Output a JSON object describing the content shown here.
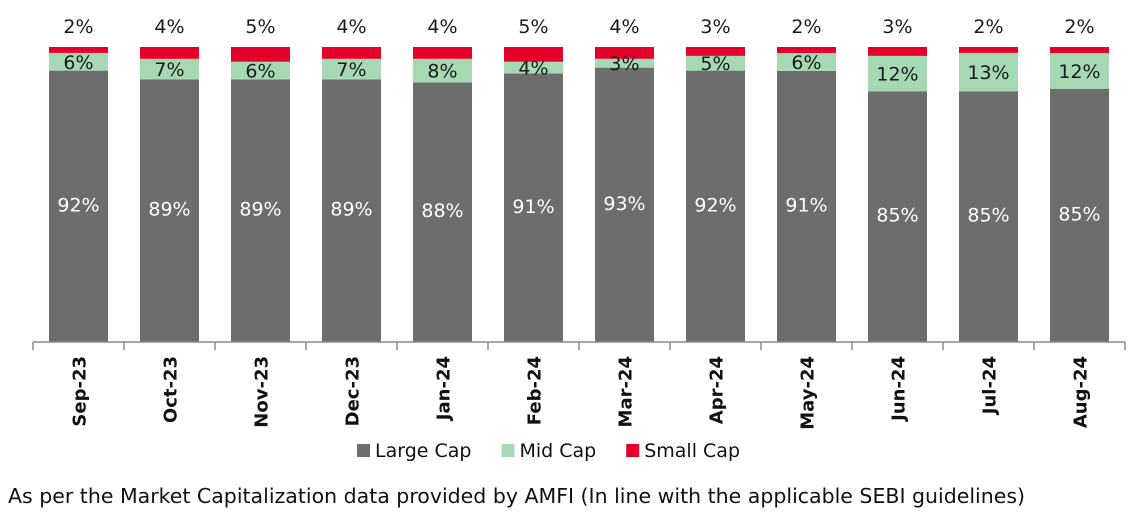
{
  "chart_data": {
    "type": "bar",
    "stacked": true,
    "categories": [
      "Sep-23",
      "Oct-23",
      "Nov-23",
      "Dec-23",
      "Jan-24",
      "Feb-24",
      "Mar-24",
      "Apr-24",
      "May-24",
      "Jun-24",
      "Jul-24",
      "Aug-24"
    ],
    "series": [
      {
        "name": "Large Cap",
        "color": "#6d6d6d",
        "values": [
          92,
          89,
          89,
          89,
          88,
          91,
          93,
          92,
          91,
          85,
          85,
          85
        ],
        "labels": [
          "92%",
          "89%",
          "89%",
          "89%",
          "88%",
          "91%",
          "93%",
          "92%",
          "91%",
          "85%",
          "85%",
          "85%"
        ]
      },
      {
        "name": "Mid Cap",
        "color": "#a6d9b3",
        "values": [
          6,
          7,
          6,
          7,
          8,
          4,
          3,
          5,
          6,
          12,
          13,
          12
        ],
        "labels": [
          "6%",
          "7%",
          "6%",
          "7%",
          "8%",
          "4%",
          "3%",
          "5%",
          "6%",
          "12%",
          "13%",
          "12%"
        ]
      },
      {
        "name": "Small Cap",
        "color": "#e4002b",
        "values": [
          2,
          4,
          5,
          4,
          4,
          5,
          4,
          3,
          2,
          3,
          2,
          2
        ],
        "labels": [
          "2%",
          "4%",
          "5%",
          "4%",
          "4%",
          "5%",
          "4%",
          "3%",
          "2%",
          "3%",
          "2%",
          "2%"
        ]
      }
    ],
    "ylim": [
      0,
      100
    ],
    "grid": false,
    "legend_position": "bottom"
  },
  "footnote": "As per the Market Capitalization data provided by AMFI (In line with the applicable SEBI guidelines)"
}
